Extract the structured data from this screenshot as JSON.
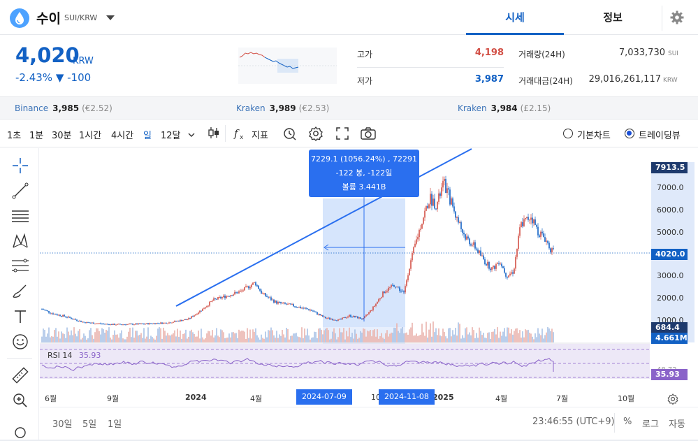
{
  "header": {
    "coin_name": "수이",
    "pair": "SUI/KRW",
    "tab_quote": "시세",
    "tab_info": "정보"
  },
  "price": {
    "value": "4,020",
    "unit": "KRW",
    "change": "-2.43% ▼ -100"
  },
  "stats": {
    "high_label": "고가",
    "high_value": "4,198",
    "low_label": "저가",
    "low_value": "3,987",
    "volume_label": "거래량(24H)",
    "volume_value": "7,033,730",
    "volume_unit": "SUI",
    "amount_label": "거래대금(24H)",
    "amount_value": "29,016,261,117",
    "amount_unit": "KRW"
  },
  "exchanges": [
    {
      "name": "Binance",
      "price": "3,985",
      "fiat": "(€2.52)"
    },
    {
      "name": "Kraken",
      "price": "3,989",
      "fiat": "(€2.53)"
    },
    {
      "name": "Kraken",
      "price": "3,984",
      "fiat": "(£2.15)"
    }
  ],
  "toolbar": {
    "intervals": [
      "1초",
      "1분",
      "30분",
      "1시간",
      "4시간",
      "일",
      "12달"
    ],
    "active_interval": "일",
    "indicator_label": "지표",
    "basic_chart": "기본차트",
    "trading_view": "트레이딩뷰"
  },
  "tooltip": {
    "line1": "7229.1 (1056.24%) , 72291",
    "line2": "-122 봉, -122일",
    "line3": "볼륨 3.441B"
  },
  "rsi": {
    "label": "RSI",
    "period": "14",
    "value": "35.93"
  },
  "x_axis": [
    "6월",
    "9월",
    "2024",
    "4월",
    "10",
    "2025",
    "4월",
    "7월",
    "10월"
  ],
  "date_badges": [
    "2024-07-09",
    "2024-11-08"
  ],
  "y_axis": [
    "7000.0",
    "6000.0",
    "5000.0",
    "3000.0",
    "2000.0",
    "1000.0"
  ],
  "y_badges": {
    "top": "7913.5",
    "current": "4020.0",
    "volume1": "684.4",
    "volume2": "4.661M",
    "rsi_level": "48.72",
    "rsi": "35.93"
  },
  "bottom": {
    "ranges": [
      "30일",
      "5일",
      "1일"
    ],
    "time": "23:46:55 (UTC+9)",
    "percent": "%",
    "log": "로그",
    "auto": "자동"
  },
  "colors": {
    "accent": "#1261c4",
    "up": "#d24f45",
    "down": "#1261c4",
    "rsi": "#8a63c9",
    "selection": "#2a6fef"
  }
}
